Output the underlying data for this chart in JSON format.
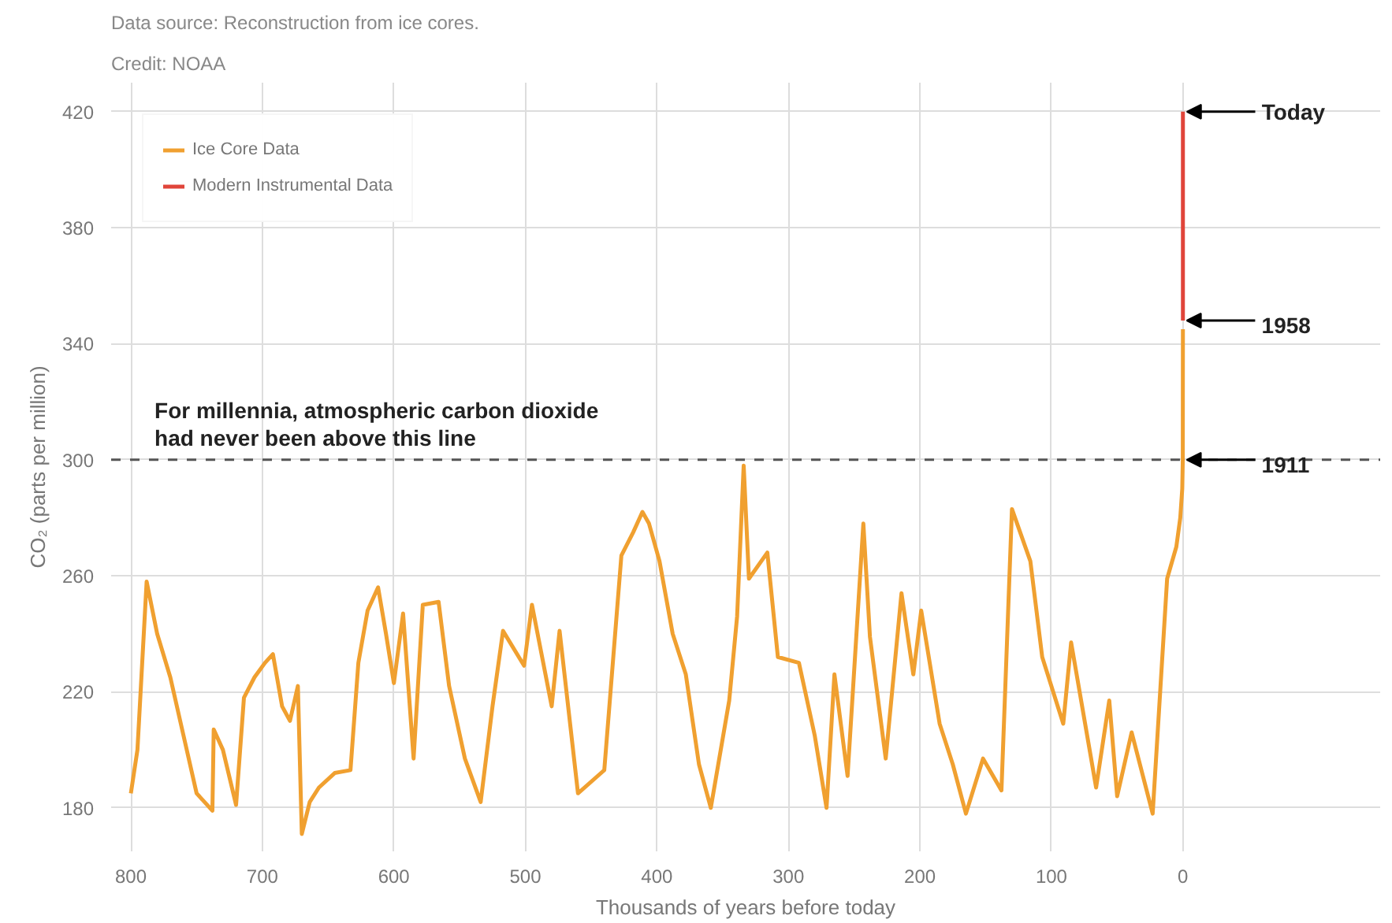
{
  "chart_data": {
    "type": "line",
    "title": "Data source: Reconstruction from ice cores.",
    "subtitle": "Credit: NOAA",
    "xlabel": "Thousands of years before today",
    "ylabel": "CO₂ (parts per million)",
    "xlim": [
      815,
      -150
    ],
    "ylim": [
      165,
      430
    ],
    "xticks": [
      800,
      700,
      600,
      500,
      400,
      300,
      200,
      100,
      0
    ],
    "yticks": [
      180,
      220,
      260,
      300,
      340,
      380,
      420
    ],
    "grid": true,
    "legend": "top left",
    "line_style": "solid",
    "marker": "none",
    "series": [
      {
        "name": "Ice Core Data",
        "color": "#f0a030",
        "x": [
          800,
          795,
          788,
          780,
          770,
          760,
          750,
          738,
          737,
          730,
          720,
          714,
          706,
          698,
          692,
          685,
          679,
          673,
          670,
          664,
          657,
          645,
          633,
          627,
          620,
          612,
          606,
          600,
          593,
          585,
          578,
          566,
          558,
          546,
          534,
          525,
          517,
          501,
          495,
          480,
          474,
          460,
          440,
          427,
          418,
          411,
          406,
          398,
          388,
          378,
          368,
          359,
          345,
          339,
          334,
          330,
          316,
          308,
          292,
          280,
          271,
          265,
          255,
          243,
          238,
          226,
          214,
          205,
          199,
          185,
          175,
          165,
          152,
          138,
          130,
          116,
          107,
          91,
          85,
          66,
          56,
          50,
          39,
          23,
          12,
          5,
          2,
          0.5,
          0.1,
          0.07,
          0
        ],
        "values": [
          185,
          200,
          258,
          240,
          225,
          205,
          185,
          179,
          207,
          200,
          181,
          218,
          225,
          230,
          233,
          215,
          210,
          222,
          171,
          182,
          187,
          192,
          193,
          230,
          248,
          256,
          240,
          223,
          247,
          197,
          250,
          251,
          222,
          197,
          182,
          215,
          241,
          229,
          250,
          215,
          241,
          185,
          193,
          267,
          275,
          282,
          278,
          265,
          240,
          226,
          195,
          180,
          217,
          246,
          298,
          259,
          268,
          232,
          230,
          205,
          180,
          226,
          191,
          278,
          239,
          197,
          254,
          226,
          248,
          209,
          195,
          178,
          197,
          186,
          283,
          265,
          232,
          209,
          237,
          187,
          217,
          184,
          206,
          178,
          259,
          270,
          280,
          290,
          300,
          315,
          345
        ]
      },
      {
        "name": "Modern Instrumental Data",
        "color": "#e0453a",
        "x": [
          0,
          0
        ],
        "values": [
          348,
          420
        ]
      }
    ],
    "ref_lines": [
      {
        "axis": "y",
        "value": 300,
        "label": "For millennia, atmospheric carbon dioxide\nhad never been above this line",
        "color": "#555555",
        "line_style": "dashed"
      }
    ],
    "annotations": [
      {
        "text": "Today",
        "x": 0,
        "y": 420
      },
      {
        "text": "1958",
        "x": 0.07,
        "y": 348
      },
      {
        "text": "1911",
        "x": 0.11,
        "y": 300
      }
    ]
  }
}
